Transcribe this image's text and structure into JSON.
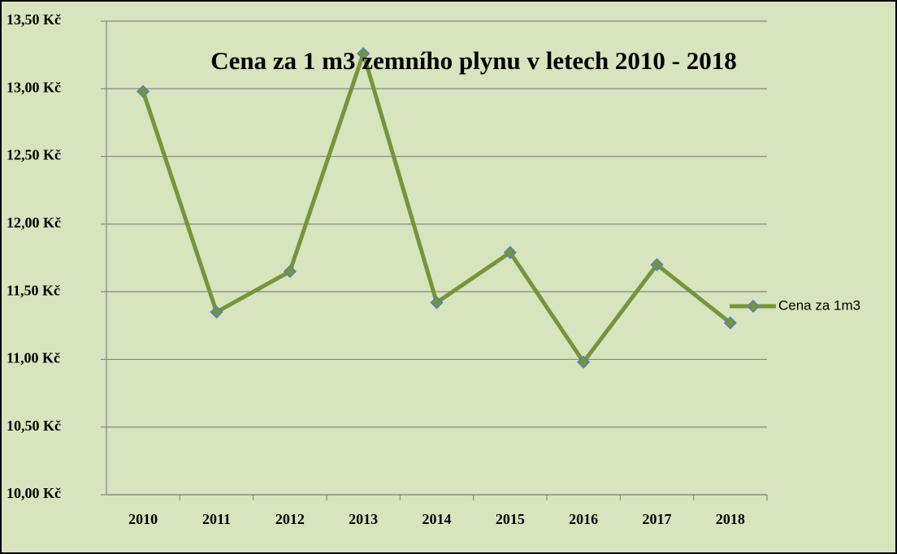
{
  "chart_data": {
    "type": "line",
    "title": "Cena za 1 m3 zemního plynu v letech 2010 - 2018",
    "categories": [
      "2010",
      "2011",
      "2012",
      "2013",
      "2014",
      "2015",
      "2016",
      "2017",
      "2018"
    ],
    "series": [
      {
        "name": "Cena za 1m3",
        "color": "#77933c",
        "marker_edge_color": "#4f81bd",
        "values": [
          12.98,
          11.35,
          11.65,
          13.26,
          11.42,
          11.79,
          10.98,
          11.7,
          11.27
        ]
      }
    ],
    "ylim": [
      10,
      13.5
    ],
    "yticks": [
      {
        "value": 10,
        "label": "10,00 Kč"
      },
      {
        "value": 10.5,
        "label": "10,50 Kč"
      },
      {
        "value": 11,
        "label": "11,00 Kč"
      },
      {
        "value": 11.5,
        "label": "11,50 Kč"
      },
      {
        "value": 12,
        "label": "12,00 Kč"
      },
      {
        "value": 12.5,
        "label": "12,50 Kč"
      },
      {
        "value": 13,
        "label": "13,00 Kč"
      },
      {
        "value": 13.5,
        "label": "13,50 Kč"
      }
    ],
    "grid": true,
    "legend": "right",
    "background": "#d7e4bd"
  }
}
